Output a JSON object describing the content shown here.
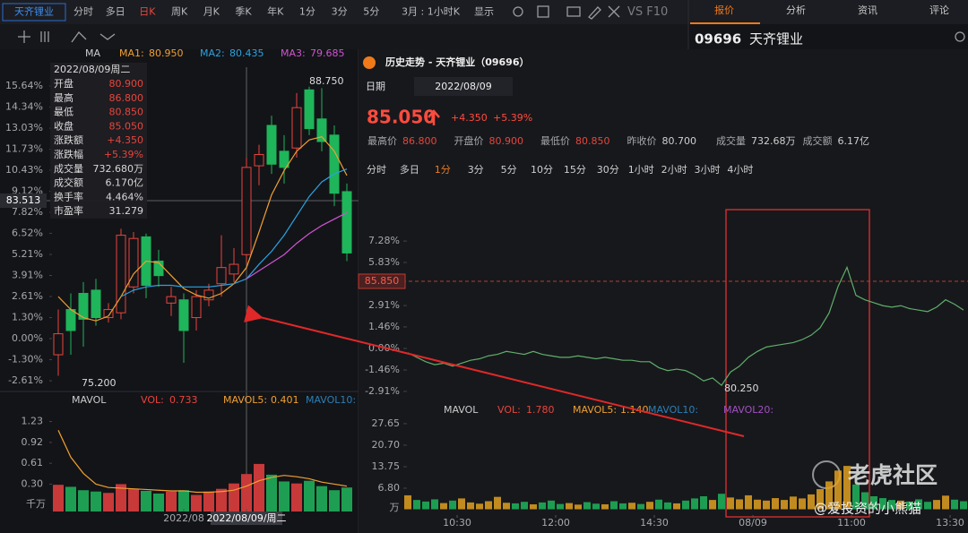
{
  "top_bar": {
    "stock": "天齐锂业",
    "periods": [
      "分时",
      "多日",
      "日K",
      "周K",
      "月K",
      "季K",
      "年K",
      "1分",
      "3分",
      "5分"
    ],
    "active": 2,
    "range": "3月 : 1小时K",
    "display": "显示",
    "vs": "VS F10"
  },
  "side": {
    "tabs": [
      "报价",
      "分析",
      "资讯",
      "评论"
    ],
    "active": 0,
    "code": "09696",
    "name": "天齐锂业"
  },
  "kline_info": {
    "date": "2022/08/09周二",
    "rows": [
      [
        "开盘",
        "80.900",
        "#e8453c"
      ],
      [
        "最高",
        "86.800",
        "#e8453c"
      ],
      [
        "最低",
        "80.850",
        "#e8453c"
      ],
      [
        "收盘",
        "85.050",
        "#e8453c"
      ],
      [
        "涨跌额",
        "+4.350",
        "#e8453c"
      ],
      [
        "涨跌幅",
        "+5.39%",
        "#e8453c"
      ],
      [
        "成交量",
        "732.680万",
        "#d8d8d8"
      ],
      [
        "成交额",
        "6.170亿",
        "#d8d8d8"
      ],
      [
        "换手率",
        "4.464%",
        "#d8d8d8"
      ],
      [
        "市盈率",
        "31.279",
        "#d8d8d8"
      ]
    ]
  },
  "popup": {
    "title": "历史走势 - 天齐锂业（09696）",
    "date_label": "日期",
    "date": "2022/08/09",
    "price": "85.050",
    "change": "+4.350",
    "change_pct": "+5.39%",
    "stats": [
      [
        "最高价",
        "86.800",
        "#e8453c"
      ],
      [
        "开盘价",
        "80.900",
        "#e8453c"
      ],
      [
        "最低价",
        "80.850",
        "#e8453c"
      ],
      [
        "昨收价",
        "80.700",
        "#cfcfcf"
      ],
      [
        "成交量",
        "732.68万",
        "#cfcfcf"
      ],
      [
        "成交额",
        "6.17亿",
        "#cfcfcf"
      ]
    ],
    "periods": [
      "分时",
      "多日",
      "1分",
      "3分",
      "5分",
      "10分",
      "15分",
      "30分",
      "1小时",
      "2小时",
      "3小时",
      "4小时"
    ],
    "active": 2
  },
  "watermark": {
    "brand": "老虎社区",
    "author": "@爱投资的小熊猫"
  },
  "chart_data": [
    {
      "type": "candlestick",
      "indicator": "MA",
      "up_color": "#e8453c",
      "down_color": "#1fb55a",
      "open": [
        -1.0,
        1.8,
        2.8,
        3.0,
        1.3,
        1.6,
        3.2,
        6.3,
        4.8,
        2.2,
        2.4,
        1.3,
        2.4,
        3.4,
        4.0,
        5.2,
        10.7,
        13.2,
        11.6,
        11.8,
        15.4,
        13.6,
        12.6,
        9.1
      ],
      "close": [
        0.3,
        0.5,
        1.2,
        1.3,
        1.8,
        6.4,
        6.2,
        3.3,
        3.9,
        2.6,
        0.5,
        2.6,
        3.0,
        4.4,
        4.6,
        10.6,
        11.4,
        10.8,
        10.6,
        14.3,
        13.0,
        12.2,
        9.0,
        5.3
      ],
      "high": [
        1.8,
        2.8,
        3.5,
        3.7,
        2.2,
        6.8,
        6.6,
        6.5,
        5.5,
        3.2,
        2.8,
        3.0,
        3.4,
        6.4,
        5.6,
        11.2,
        12.0,
        13.8,
        12.6,
        15.2,
        15.6,
        15.5,
        13.2,
        9.6
      ],
      "low": [
        -2.3,
        -1.0,
        -0.5,
        0.8,
        1.0,
        1.2,
        2.8,
        2.5,
        3.2,
        1.4,
        -1.5,
        0.5,
        2.0,
        2.6,
        3.5,
        4.6,
        9.5,
        10.2,
        9.6,
        11.2,
        12.6,
        11.6,
        8.2,
        4.8
      ],
      "series": [
        {
          "name": "MA1:",
          "label": "80.950",
          "color": "#f0a030",
          "values": [
            2.6,
            1.8,
            1.3,
            1.1,
            1.4,
            2.6,
            4.0,
            4.8,
            4.7,
            3.9,
            3.1,
            2.7,
            2.5,
            2.8,
            3.4,
            4.4,
            6.6,
            8.9,
            10.4,
            11.6,
            12.3,
            12.5,
            11.6,
            10.1
          ]
        },
        {
          "name": "MA2:",
          "label": "80.435",
          "color": "#2ba3e0",
          "values": [
            null,
            null,
            null,
            null,
            null,
            2.6,
            3.0,
            3.2,
            3.3,
            3.3,
            3.2,
            3.2,
            3.2,
            3.3,
            3.4,
            3.7,
            4.6,
            5.4,
            6.4,
            7.6,
            8.8,
            9.7,
            10.2,
            10.5
          ]
        },
        {
          "name": "MA3:",
          "label": "79.685",
          "color": "#d055d0",
          "values": [
            null,
            null,
            null,
            null,
            null,
            null,
            null,
            null,
            null,
            null,
            null,
            null,
            null,
            null,
            null,
            3.7,
            4.2,
            4.7,
            5.2,
            5.9,
            6.5,
            7.0,
            7.4,
            7.8
          ]
        }
      ],
      "ylim": [
        -3.5,
        16.4
      ],
      "yticks": [
        {
          "value": 15.64,
          "label": "15.64%"
        },
        {
          "value": 14.34,
          "label": "14.34%"
        },
        {
          "value": 13.03,
          "label": "13.03%"
        },
        {
          "value": 11.73,
          "label": "11.73%"
        },
        {
          "value": 10.43,
          "label": "10.43%"
        },
        {
          "value": 9.12,
          "label": "9.12%"
        },
        {
          "value": 7.82,
          "label": "7.82%"
        },
        {
          "value": 6.52,
          "label": "6.52%"
        },
        {
          "value": 5.21,
          "label": "5.21%"
        },
        {
          "value": 3.91,
          "label": "3.91%"
        },
        {
          "value": 2.61,
          "label": "2.61%"
        },
        {
          "value": 1.3,
          "label": "1.30%"
        },
        {
          "value": 0,
          "label": "0.00%"
        },
        {
          "value": -1.3,
          "label": "-1.30%"
        },
        {
          "value": -2.61,
          "label": "-2.61%"
        }
      ],
      "annotations": {
        "high": "88.750",
        "low": "75.200",
        "crosshair": "83.513"
      }
    },
    {
      "type": "bar",
      "indicator": "MAVOL",
      "unit": "千万",
      "legend": [
        {
          "name": "VOL:",
          "label": "0.733",
          "color": "#e8453c"
        },
        {
          "name": "MAVOL5:",
          "label": "0.401",
          "color": "#f0a030"
        },
        {
          "name": "MAVOL10:",
          "color": "#2b7fb5"
        }
      ],
      "values": [
        0.29,
        0.26,
        0.21,
        0.19,
        0.17,
        0.3,
        0.23,
        0.2,
        0.16,
        0.19,
        0.21,
        0.14,
        0.19,
        0.23,
        0.31,
        0.45,
        0.6,
        0.44,
        0.34,
        0.31,
        0.35,
        0.27,
        0.21,
        0.25
      ],
      "ma_values": [
        1.1,
        0.7,
        0.46,
        0.3,
        0.25,
        0.24,
        0.23,
        0.22,
        0.21,
        0.2,
        0.2,
        0.18,
        0.18,
        0.19,
        0.21,
        0.27,
        0.35,
        0.4,
        0.43,
        0.41,
        0.38,
        0.33,
        0.3,
        0.27
      ],
      "ylim": [
        0,
        1.45
      ],
      "yticks": [
        1.23,
        0.92,
        0.61,
        {
          "value": 0.3,
          "label": "0.30"
        }
      ],
      "xticks": [
        {
          "value": 10,
          "label": "2022/08"
        },
        {
          "value": 15,
          "label": "2022/08/09/周二"
        }
      ]
    },
    {
      "type": "line",
      "color": "#5fae6a",
      "x": [
        0,
        2,
        4,
        6,
        8,
        10,
        12,
        14,
        16,
        18,
        20,
        22,
        24,
        26,
        28,
        30,
        32,
        34,
        36,
        38,
        40,
        42,
        44,
        46,
        48,
        50,
        52,
        54,
        56,
        58,
        60,
        62,
        64,
        66,
        68,
        70,
        72,
        74,
        76,
        78,
        80,
        82,
        84,
        86,
        88,
        90,
        92,
        94,
        96,
        98,
        100,
        102,
        104,
        106,
        108,
        110,
        112,
        114,
        116,
        118,
        120,
        122,
        124
      ],
      "values": [
        -0.3,
        -0.6,
        -0.9,
        -1.1,
        -1.0,
        -1.2,
        -1.0,
        -0.8,
        -0.7,
        -0.5,
        -0.4,
        -0.2,
        -0.3,
        -0.4,
        -0.2,
        -0.4,
        -0.5,
        -0.6,
        -0.6,
        -0.5,
        -0.6,
        -0.7,
        -0.6,
        -0.7,
        -0.8,
        -0.8,
        -0.9,
        -0.9,
        -1.3,
        -1.5,
        -1.4,
        -1.5,
        -1.8,
        -2.2,
        -2.0,
        -2.5,
        -1.6,
        -1.2,
        -0.6,
        -0.2,
        0.1,
        0.2,
        0.3,
        0.4,
        0.6,
        0.9,
        1.4,
        2.4,
        4.2,
        5.5,
        3.6,
        3.3,
        3.1,
        2.9,
        2.8,
        2.9,
        2.7,
        2.6,
        2.5,
        2.8,
        3.3,
        3.0,
        2.6
      ],
      "xlim": [
        0,
        125
      ],
      "ylim": [
        -3.4,
        9.35
      ],
      "yticks": [
        {
          "value": 7.28,
          "label": "7.28%"
        },
        {
          "value": 5.83,
          "label": "5.83%"
        },
        {
          "value": 2.91,
          "label": "2.91%"
        },
        {
          "value": 1.46,
          "label": "1.46%"
        },
        {
          "value": 0,
          "label": "0.00%"
        },
        {
          "value": -1.46,
          "label": "-1.46%"
        },
        {
          "value": -2.91,
          "label": "-2.91%"
        }
      ],
      "xticks": [
        {
          "value": 11,
          "label": "10:30"
        },
        {
          "value": 33,
          "label": "12:00"
        },
        {
          "value": 55,
          "label": "14:30"
        },
        {
          "value": 77,
          "label": "08/09"
        },
        {
          "value": 99,
          "label": "11:00"
        },
        {
          "value": 121,
          "label": "13:30"
        }
      ],
      "annotations": {
        "low": "80.250",
        "crosshair": "85.850"
      }
    },
    {
      "type": "bar",
      "indicator": "MAVOL",
      "unit": "万",
      "up_color": "#e0a020",
      "down_color": "#1fb55a",
      "legend": [
        {
          "name": "VOL:",
          "label": "1.780",
          "color": "#e8453c"
        },
        {
          "name": "MAVOL5:",
          "label": "1.140",
          "color": "#f0a030"
        },
        {
          "name": "MAVOL10:",
          "color": "#2b7fb5"
        },
        {
          "name": "MAVOL20:",
          "color": "#a050c0"
        }
      ],
      "values": [
        4.5,
        3.0,
        2.5,
        3.2,
        2.0,
        2.8,
        3.5,
        2.2,
        1.8,
        2.6,
        4.0,
        2.1,
        1.9,
        2.4,
        1.6,
        2.2,
        2.8,
        1.7,
        2.0,
        1.5,
        2.3,
        1.8,
        1.6,
        2.6,
        1.9,
        2.1,
        1.7,
        2.4,
        3.1,
        2.2,
        1.9,
        2.8,
        3.5,
        4.2,
        3.0,
        5.0,
        3.8,
        3.2,
        4.5,
        3.1,
        2.8,
        3.6,
        3.0,
        4.1,
        3.5,
        4.8,
        6.5,
        9.0,
        12.5,
        14.0,
        8.0,
        5.5,
        4.2,
        3.6,
        3.0,
        2.8,
        2.5,
        3.2,
        2.4,
        3.0,
        4.4,
        3.1,
        2.6
      ],
      "ylim": [
        0,
        34
      ],
      "yticks": [
        27.65,
        {
          "value": 20.7,
          "label": "20.70"
        },
        13.75,
        {
          "value": 6.8,
          "label": "6.80"
        }
      ]
    }
  ]
}
